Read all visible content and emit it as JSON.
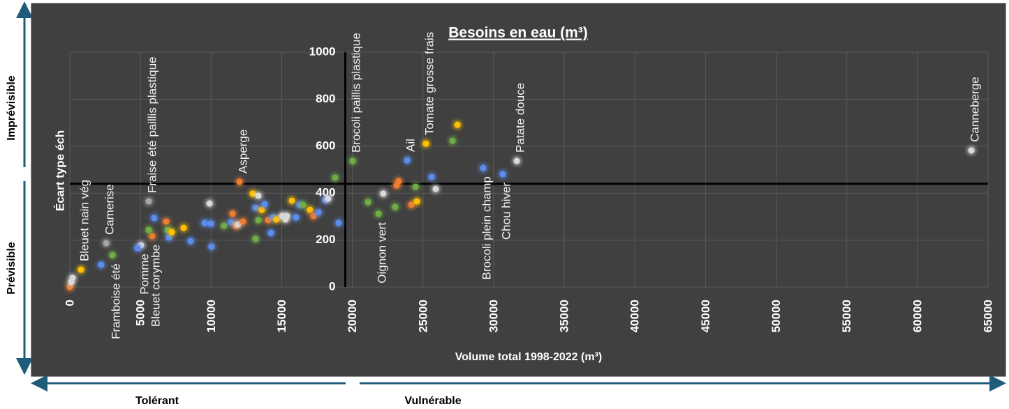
{
  "chart_data": {
    "type": "scatter",
    "title": "Besoins en eau (m³)",
    "xlabel": "Volume total 1998-2022 (m³)",
    "ylabel": "Écart type éch",
    "xlim": [
      0,
      65000
    ],
    "xticks": [
      0,
      5000,
      10000,
      15000,
      20000,
      25000,
      30000,
      35000,
      40000,
      45000,
      50000,
      55000,
      60000,
      65000
    ],
    "ylim": [
      0,
      1000
    ],
    "yticks": [
      0,
      200,
      400,
      600,
      800,
      1000
    ],
    "grid": true,
    "x_axis_crosses_at": 440,
    "y_axis_crosses_at": 19500,
    "side_labels": {
      "top": "Imprévisible",
      "bottom": "Prévisible",
      "left": "Tolérant",
      "right": "Vulnérable"
    },
    "x": [
      790,
      3015,
      2570,
      5040,
      5830,
      5590,
      12010,
      20020,
      21850,
      23880,
      25210,
      29260,
      30650,
      31640,
      63820,
      0,
      100,
      200,
      2220,
      4790,
      5590,
      5980,
      6820,
      6920,
      7020,
      7220,
      8060,
      8550,
      9540,
      9890,
      9990,
      10030,
      10920,
      11420,
      11520,
      11760,
      11910,
      12260,
      12950,
      13150,
      13350,
      13350,
      13150,
      13590,
      13790,
      14040,
      14240,
      14380,
      14630,
      15030,
      15270,
      15370,
      15720,
      16010,
      16260,
      16510,
      17000,
      17250,
      17600,
      18090,
      18290,
      18780,
      19030,
      21110,
      22190,
      23030,
      23280,
      23130,
      24170,
      24470,
      24570,
      25610,
      25900,
      27090,
      27440
    ],
    "values": [
      74,
      136,
      187,
      178,
      217,
      365,
      448,
      537,
      312,
      540,
      611,
      507,
      481,
      537,
      582,
      0,
      21,
      39,
      95,
      166,
      243,
      294,
      279,
      243,
      211,
      234,
      252,
      196,
      273,
      356,
      270,
      172,
      261,
      276,
      312,
      261,
      267,
      279,
      398,
      205,
      389,
      285,
      338,
      329,
      353,
      285,
      231,
      297,
      288,
      303,
      288,
      303,
      368,
      297,
      350,
      350,
      329,
      303,
      318,
      371,
      377,
      466,
      273,
      362,
      398,
      341,
      451,
      433,
      350,
      427,
      365,
      469,
      418,
      623,
      691
    ],
    "colors": [
      "#ffc000",
      "#70ad47",
      "#a5a5a5",
      "#d9d9d9",
      "#ed7d31",
      "#a5a5a5",
      "#ed7d31",
      "#70ad47",
      "#70ad47",
      "#5b8def",
      "#ffc000",
      "#5b8def",
      "#5b8def",
      "#d9d9d9",
      "#d9d9d9",
      "#ed7d31",
      "#d9d9d9",
      "#d9d9d9",
      "#5b8def",
      "#5b8def",
      "#70ad47",
      "#5b8def",
      "#ed7d31",
      "#70ad47",
      "#5b8def",
      "#ffc000",
      "#ffc000",
      "#5b8def",
      "#5b8def",
      "#d9d9d9",
      "#5b8def",
      "#5b8def",
      "#70ad47",
      "#5b8def",
      "#ed7d31",
      "#ed7d31",
      "#d9d9d9",
      "#ed7d31",
      "#ffc000",
      "#70ad47",
      "#d9d9d9",
      "#70ad47",
      "#5b8def",
      "#ffc000",
      "#5b8def",
      "#ed7d31",
      "#5b8def",
      "#5b8def",
      "#ffc000",
      "#d9d9d9",
      "#d9d9d9",
      "#d9d9d9",
      "#ffc000",
      "#5b8def",
      "#5b8def",
      "#70ad47",
      "#ffc000",
      "#ed7d31",
      "#5b8def",
      "#5b8def",
      "#d9d9d9",
      "#70ad47",
      "#5b8def",
      "#70ad47",
      "#d9d9d9",
      "#70ad47",
      "#ed7d31",
      "#ed7d31",
      "#ed7d31",
      "#70ad47",
      "#ffc000",
      "#5b8def",
      "#d9d9d9",
      "#70ad47",
      "#ffc000"
    ],
    "point_labels": [
      "Bleuet nain vég",
      "Framboise été",
      "Camerise",
      "Pomme",
      "Bleuet corymbe",
      "Fraise été paillis plastique",
      "Asperge",
      "Brocoli paillis plastique",
      "Oignon vert",
      "Ail",
      "Tomate grosse frais",
      "Brocoli plein champ",
      "Chou hiver",
      "Patate douce",
      "Canneberge",
      null,
      null,
      null,
      null,
      null,
      null,
      null,
      null,
      null,
      null,
      null,
      null,
      null,
      null,
      null,
      null,
      null,
      null,
      null,
      null,
      null,
      null,
      null,
      null,
      null,
      null,
      null,
      null,
      null,
      null,
      null,
      null,
      null,
      null,
      null,
      null,
      null,
      null,
      null,
      null,
      null,
      null,
      null,
      null,
      null,
      null,
      null,
      null,
      null,
      null,
      null,
      null,
      null,
      null,
      null,
      null,
      null,
      null,
      null,
      null
    ],
    "label_side": [
      "above",
      "below",
      "above",
      "below",
      "below",
      "above",
      "above",
      "above",
      "below",
      "above",
      "above",
      "below",
      "below",
      "above",
      "above",
      null,
      null,
      null,
      null,
      null,
      null,
      null,
      null,
      null,
      null,
      null,
      null,
      null,
      null,
      null,
      null,
      null,
      null,
      null,
      null,
      null,
      null,
      null,
      null,
      null,
      null,
      null,
      null,
      null,
      null,
      null,
      null,
      null,
      null,
      null,
      null,
      null,
      null,
      null,
      null,
      null,
      null,
      null,
      null,
      null,
      null,
      null,
      null,
      null,
      null,
      null,
      null,
      null,
      null,
      null,
      null,
      null,
      null,
      null,
      null
    ]
  }
}
